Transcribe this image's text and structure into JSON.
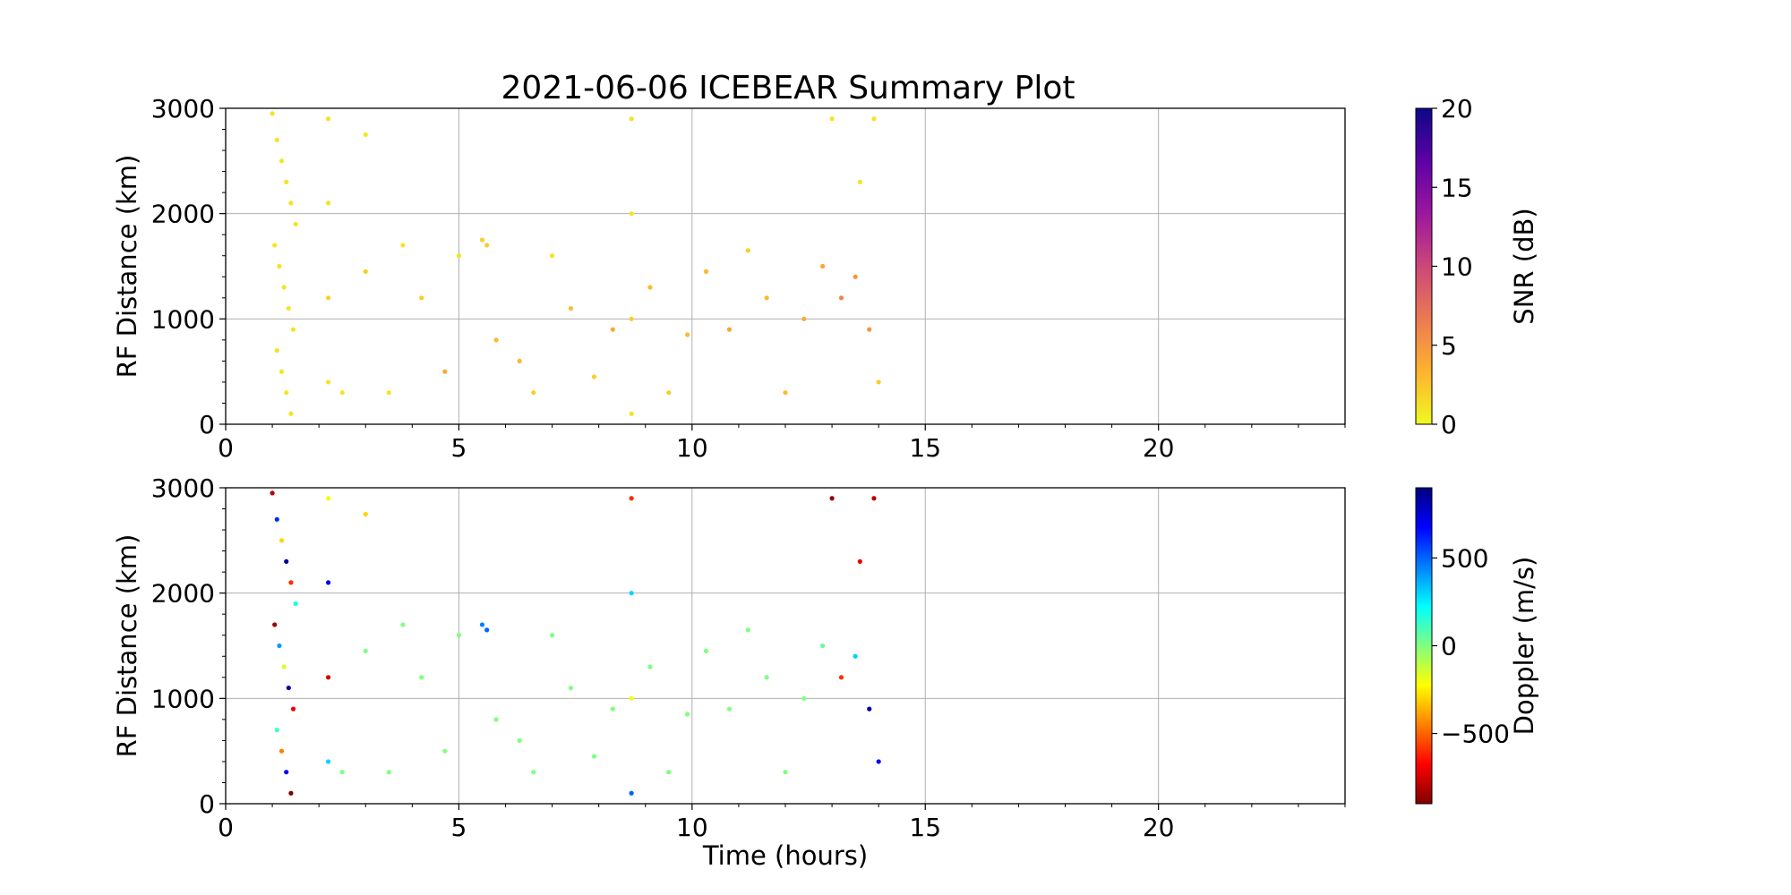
{
  "figure": {
    "title": "2021-06-06 ICEBEAR Summary Plot"
  },
  "chart_data": [
    {
      "type": "scatter",
      "panel": "top",
      "ylabel": "RF Distance (km)",
      "xlabel": "",
      "xlim": [
        0,
        24
      ],
      "ylim": [
        0,
        3000
      ],
      "xticks": [
        0,
        5,
        10,
        15,
        20
      ],
      "yticks": [
        0,
        1000,
        2000,
        3000
      ],
      "grid": true,
      "colorbar": {
        "label": "SNR (dB)",
        "range": [
          0,
          20
        ],
        "ticks": [
          0,
          5,
          10,
          15,
          20
        ],
        "colormap": "plasma_r",
        "colors": [
          "#f0f921",
          "#fdb32f",
          "#ed7953",
          "#cc4778",
          "#9c179e",
          "#5c01a6",
          "#0d0887"
        ]
      },
      "color_by": "snr",
      "series": [
        {
          "x": 1.0,
          "y": 2950,
          "snr": 1
        },
        {
          "x": 1.1,
          "y": 2700,
          "snr": 1
        },
        {
          "x": 1.2,
          "y": 2500,
          "snr": 1
        },
        {
          "x": 1.3,
          "y": 2300,
          "snr": 1
        },
        {
          "x": 1.4,
          "y": 2100,
          "snr": 1
        },
        {
          "x": 1.5,
          "y": 1900,
          "snr": 1
        },
        {
          "x": 1.05,
          "y": 1700,
          "snr": 1
        },
        {
          "x": 1.15,
          "y": 1500,
          "snr": 1
        },
        {
          "x": 1.25,
          "y": 1300,
          "snr": 1
        },
        {
          "x": 1.35,
          "y": 1100,
          "snr": 1
        },
        {
          "x": 1.45,
          "y": 900,
          "snr": 1
        },
        {
          "x": 1.1,
          "y": 700,
          "snr": 1
        },
        {
          "x": 1.2,
          "y": 500,
          "snr": 1
        },
        {
          "x": 1.3,
          "y": 300,
          "snr": 1
        },
        {
          "x": 1.4,
          "y": 100,
          "snr": 1
        },
        {
          "x": 2.2,
          "y": 2900,
          "snr": 1
        },
        {
          "x": 2.2,
          "y": 2100,
          "snr": 1
        },
        {
          "x": 2.2,
          "y": 1200,
          "snr": 2
        },
        {
          "x": 2.2,
          "y": 400,
          "snr": 1
        },
        {
          "x": 2.5,
          "y": 300,
          "snr": 1
        },
        {
          "x": 3.0,
          "y": 2750,
          "snr": 1
        },
        {
          "x": 3.0,
          "y": 1450,
          "snr": 2
        },
        {
          "x": 3.5,
          "y": 300,
          "snr": 1
        },
        {
          "x": 3.8,
          "y": 1700,
          "snr": 1
        },
        {
          "x": 4.2,
          "y": 1200,
          "snr": 2
        },
        {
          "x": 4.7,
          "y": 500,
          "snr": 4
        },
        {
          "x": 5.0,
          "y": 1600,
          "snr": 1
        },
        {
          "x": 5.5,
          "y": 1750,
          "snr": 2
        },
        {
          "x": 5.6,
          "y": 1700,
          "snr": 2
        },
        {
          "x": 5.8,
          "y": 800,
          "snr": 3
        },
        {
          "x": 6.3,
          "y": 600,
          "snr": 3
        },
        {
          "x": 6.6,
          "y": 300,
          "snr": 2
        },
        {
          "x": 7.0,
          "y": 1600,
          "snr": 1
        },
        {
          "x": 7.4,
          "y": 1100,
          "snr": 3
        },
        {
          "x": 7.9,
          "y": 450,
          "snr": 2
        },
        {
          "x": 8.3,
          "y": 900,
          "snr": 4
        },
        {
          "x": 8.7,
          "y": 2900,
          "snr": 1
        },
        {
          "x": 8.7,
          "y": 2000,
          "snr": 1
        },
        {
          "x": 8.7,
          "y": 1000,
          "snr": 2
        },
        {
          "x": 8.7,
          "y": 100,
          "snr": 1
        },
        {
          "x": 9.1,
          "y": 1300,
          "snr": 3
        },
        {
          "x": 9.5,
          "y": 300,
          "snr": 2
        },
        {
          "x": 9.9,
          "y": 850,
          "snr": 3
        },
        {
          "x": 10.3,
          "y": 1450,
          "snr": 3
        },
        {
          "x": 10.8,
          "y": 900,
          "snr": 4
        },
        {
          "x": 11.2,
          "y": 1650,
          "snr": 2
        },
        {
          "x": 11.6,
          "y": 1200,
          "snr": 3
        },
        {
          "x": 12.0,
          "y": 300,
          "snr": 3
        },
        {
          "x": 12.4,
          "y": 1000,
          "snr": 4
        },
        {
          "x": 12.8,
          "y": 1500,
          "snr": 4
        },
        {
          "x": 13.0,
          "y": 2900,
          "snr": 1
        },
        {
          "x": 13.2,
          "y": 1200,
          "snr": 6
        },
        {
          "x": 13.5,
          "y": 1400,
          "snr": 5
        },
        {
          "x": 13.6,
          "y": 2300,
          "snr": 1
        },
        {
          "x": 13.8,
          "y": 900,
          "snr": 5
        },
        {
          "x": 13.9,
          "y": 2900,
          "snr": 1
        },
        {
          "x": 14.0,
          "y": 400,
          "snr": 2
        }
      ]
    },
    {
      "type": "scatter",
      "panel": "bottom",
      "ylabel": "RF Distance (km)",
      "xlabel": "Time (hours)",
      "xlim": [
        0,
        24
      ],
      "ylim": [
        0,
        3000
      ],
      "xticks": [
        0,
        5,
        10,
        15,
        20
      ],
      "yticks": [
        0,
        1000,
        2000,
        3000
      ],
      "grid": true,
      "colorbar": {
        "label": "Doppler (m/s)",
        "range": [
          -900,
          900
        ],
        "ticks": [
          -500,
          0,
          500
        ],
        "ticklabels": [
          "−500",
          "0",
          "500"
        ],
        "colormap": "jet_r",
        "colors": [
          "#800000",
          "#ff0000",
          "#ff8000",
          "#ffff00",
          "#80ff80",
          "#00ffff",
          "#0080ff",
          "#0000ff",
          "#000080"
        ]
      },
      "color_by": "doppler",
      "series": [
        {
          "x": 1.0,
          "y": 2950,
          "doppler": -800
        },
        {
          "x": 1.1,
          "y": 2700,
          "doppler": 600
        },
        {
          "x": 1.2,
          "y": 2500,
          "doppler": -300
        },
        {
          "x": 1.3,
          "y": 2300,
          "doppler": 850
        },
        {
          "x": 1.4,
          "y": 2100,
          "doppler": -600
        },
        {
          "x": 1.5,
          "y": 1900,
          "doppler": 200
        },
        {
          "x": 1.05,
          "y": 1700,
          "doppler": -850
        },
        {
          "x": 1.15,
          "y": 1500,
          "doppler": 400
        },
        {
          "x": 1.25,
          "y": 1300,
          "doppler": -150
        },
        {
          "x": 1.35,
          "y": 1100,
          "doppler": 800
        },
        {
          "x": 1.45,
          "y": 900,
          "doppler": -700
        },
        {
          "x": 1.1,
          "y": 700,
          "doppler": 100
        },
        {
          "x": 1.2,
          "y": 500,
          "doppler": -450
        },
        {
          "x": 1.3,
          "y": 300,
          "doppler": 700
        },
        {
          "x": 1.4,
          "y": 100,
          "doppler": -900
        },
        {
          "x": 2.2,
          "y": 2900,
          "doppler": -200
        },
        {
          "x": 2.2,
          "y": 2100,
          "doppler": 700
        },
        {
          "x": 2.2,
          "y": 1200,
          "doppler": -750
        },
        {
          "x": 2.2,
          "y": 400,
          "doppler": 300
        },
        {
          "x": 2.5,
          "y": 300,
          "doppler": 0
        },
        {
          "x": 3.0,
          "y": 2750,
          "doppler": -300
        },
        {
          "x": 3.0,
          "y": 1450,
          "doppler": 0
        },
        {
          "x": 3.5,
          "y": 300,
          "doppler": 0
        },
        {
          "x": 3.8,
          "y": 1700,
          "doppler": 0
        },
        {
          "x": 4.2,
          "y": 1200,
          "doppler": 0
        },
        {
          "x": 4.7,
          "y": 500,
          "doppler": 0
        },
        {
          "x": 5.0,
          "y": 1600,
          "doppler": 0
        },
        {
          "x": 5.5,
          "y": 1700,
          "doppler": 450
        },
        {
          "x": 5.6,
          "y": 1650,
          "doppler": 500
        },
        {
          "x": 5.8,
          "y": 800,
          "doppler": 0
        },
        {
          "x": 6.3,
          "y": 600,
          "doppler": 0
        },
        {
          "x": 6.6,
          "y": 300,
          "doppler": 0
        },
        {
          "x": 7.0,
          "y": 1600,
          "doppler": 0
        },
        {
          "x": 7.4,
          "y": 1100,
          "doppler": 0
        },
        {
          "x": 7.9,
          "y": 450,
          "doppler": 0
        },
        {
          "x": 8.3,
          "y": 900,
          "doppler": 0
        },
        {
          "x": 8.7,
          "y": 2900,
          "doppler": -600
        },
        {
          "x": 8.7,
          "y": 2000,
          "doppler": 300
        },
        {
          "x": 8.7,
          "y": 1000,
          "doppler": -200
        },
        {
          "x": 8.7,
          "y": 100,
          "doppler": 500
        },
        {
          "x": 9.1,
          "y": 1300,
          "doppler": 0
        },
        {
          "x": 9.5,
          "y": 300,
          "doppler": 0
        },
        {
          "x": 9.9,
          "y": 850,
          "doppler": 0
        },
        {
          "x": 10.3,
          "y": 1450,
          "doppler": 0
        },
        {
          "x": 10.8,
          "y": 900,
          "doppler": 0
        },
        {
          "x": 11.2,
          "y": 1650,
          "doppler": 0
        },
        {
          "x": 11.6,
          "y": 1200,
          "doppler": 0
        },
        {
          "x": 12.0,
          "y": 300,
          "doppler": 0
        },
        {
          "x": 12.4,
          "y": 1000,
          "doppler": 0
        },
        {
          "x": 12.8,
          "y": 1500,
          "doppler": 50
        },
        {
          "x": 13.0,
          "y": 2900,
          "doppler": -850
        },
        {
          "x": 13.2,
          "y": 1200,
          "doppler": -600
        },
        {
          "x": 13.5,
          "y": 1400,
          "doppler": 300
        },
        {
          "x": 13.6,
          "y": 2300,
          "doppler": -700
        },
        {
          "x": 13.8,
          "y": 900,
          "doppler": 800
        },
        {
          "x": 13.9,
          "y": 2900,
          "doppler": -800
        },
        {
          "x": 14.0,
          "y": 400,
          "doppler": 700
        }
      ]
    }
  ]
}
